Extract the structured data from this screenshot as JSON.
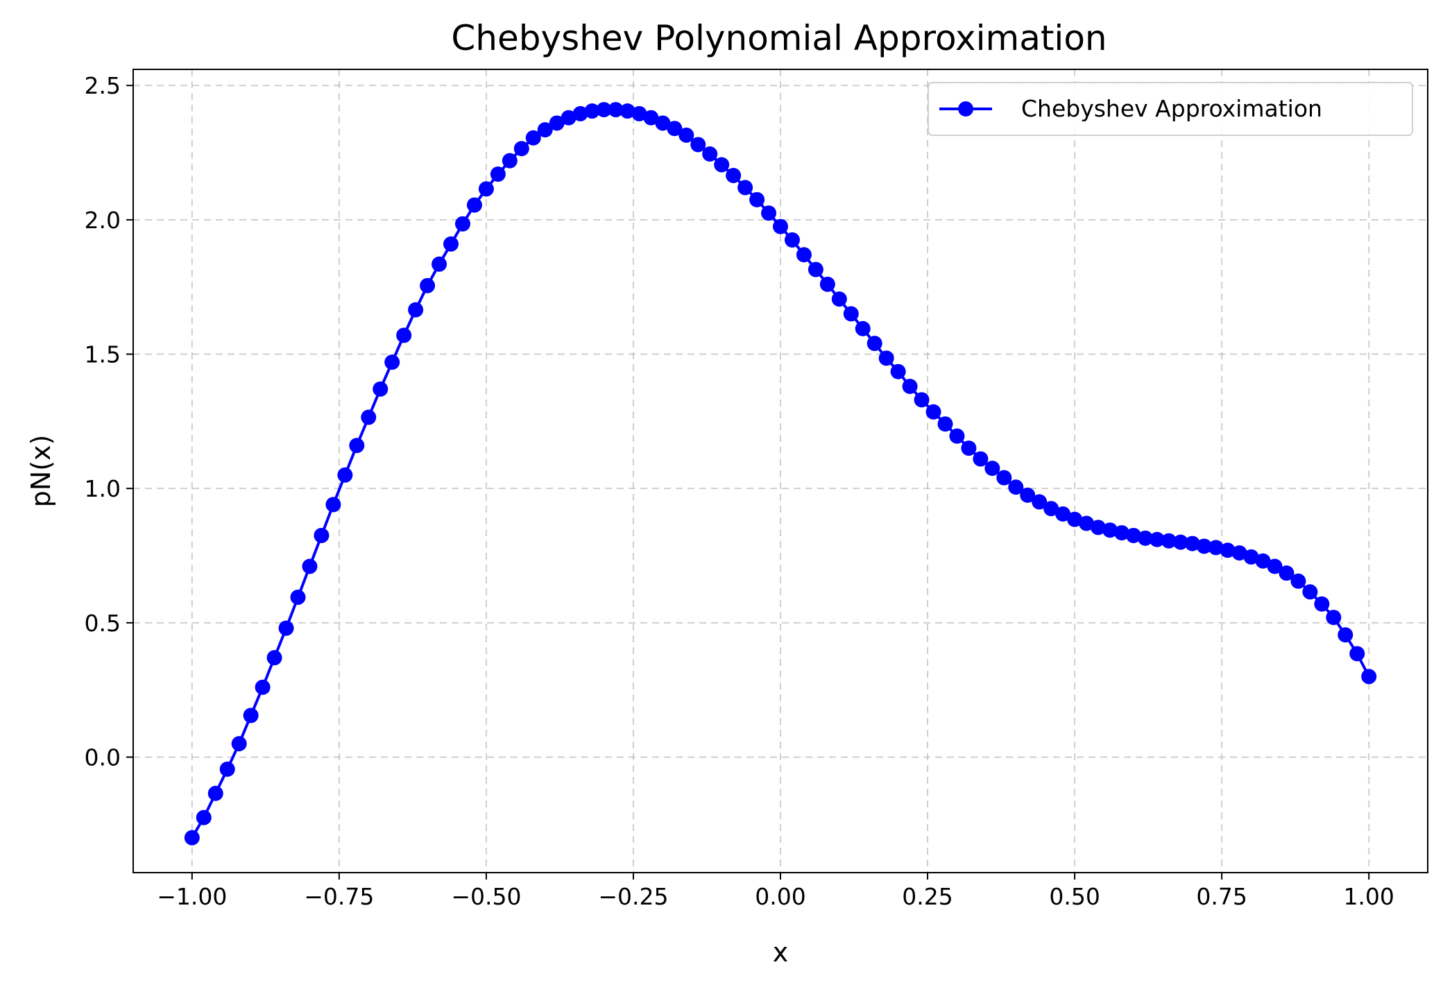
{
  "chart_data": {
    "type": "line",
    "title": "Chebyshev Polynomial Approximation",
    "xlabel": "x",
    "ylabel": "pN(x)",
    "xlim": [
      -1.1,
      1.1
    ],
    "ylim": [
      -0.43,
      2.56
    ],
    "xticks": [
      -1.0,
      -0.75,
      -0.5,
      -0.25,
      0.0,
      0.25,
      0.5,
      0.75,
      1.0
    ],
    "xtick_labels": [
      "−1.00",
      "−0.75",
      "−0.50",
      "−0.25",
      "0.00",
      "0.25",
      "0.50",
      "0.75",
      "1.00"
    ],
    "yticks": [
      0.0,
      0.5,
      1.0,
      1.5,
      2.0,
      2.5
    ],
    "ytick_labels": [
      "0.0",
      "0.5",
      "1.0",
      "1.5",
      "2.0",
      "2.5"
    ],
    "grid": true,
    "legend_position": "top-right",
    "series": [
      {
        "name": "Chebyshev Approximation",
        "color": "#0000ff",
        "marker": "circle",
        "x": [
          -1.0,
          -0.98,
          -0.96,
          -0.94,
          -0.92,
          -0.9,
          -0.88,
          -0.86,
          -0.84,
          -0.82,
          -0.8,
          -0.78,
          -0.76,
          -0.74,
          -0.72,
          -0.7,
          -0.68,
          -0.66,
          -0.64,
          -0.62,
          -0.6,
          -0.58,
          -0.56,
          -0.54,
          -0.52,
          -0.5,
          -0.48,
          -0.46,
          -0.44,
          -0.42,
          -0.4,
          -0.38,
          -0.36,
          -0.34,
          -0.32,
          -0.3,
          -0.28,
          -0.26,
          -0.24,
          -0.22,
          -0.2,
          -0.18,
          -0.16,
          -0.14,
          -0.12,
          -0.1,
          -0.08,
          -0.06,
          -0.04,
          -0.02,
          0.0,
          0.02,
          0.04,
          0.06,
          0.08,
          0.1,
          0.12,
          0.14,
          0.16,
          0.18,
          0.2,
          0.22,
          0.24,
          0.26,
          0.28,
          0.3,
          0.32,
          0.34,
          0.36,
          0.38,
          0.4,
          0.42,
          0.44,
          0.46,
          0.48,
          0.5,
          0.52,
          0.54,
          0.56,
          0.58,
          0.6,
          0.62,
          0.64,
          0.66,
          0.68,
          0.7,
          0.72,
          0.74,
          0.76,
          0.78,
          0.8,
          0.82,
          0.84,
          0.86,
          0.88,
          0.9,
          0.92,
          0.94,
          0.96,
          0.98,
          1.0
        ],
        "y": [
          -0.3,
          -0.225,
          -0.135,
          -0.045,
          0.05,
          0.155,
          0.26,
          0.37,
          0.48,
          0.595,
          0.71,
          0.825,
          0.94,
          1.05,
          1.16,
          1.265,
          1.37,
          1.47,
          1.57,
          1.665,
          1.755,
          1.835,
          1.91,
          1.985,
          2.055,
          2.115,
          2.17,
          2.22,
          2.265,
          2.305,
          2.335,
          2.36,
          2.38,
          2.395,
          2.405,
          2.41,
          2.41,
          2.405,
          2.395,
          2.38,
          2.36,
          2.34,
          2.315,
          2.28,
          2.245,
          2.205,
          2.165,
          2.12,
          2.075,
          2.025,
          1.975,
          1.925,
          1.87,
          1.815,
          1.76,
          1.705,
          1.65,
          1.595,
          1.54,
          1.485,
          1.435,
          1.38,
          1.33,
          1.285,
          1.24,
          1.195,
          1.15,
          1.11,
          1.075,
          1.04,
          1.005,
          0.975,
          0.95,
          0.925,
          0.905,
          0.885,
          0.87,
          0.855,
          0.845,
          0.835,
          0.825,
          0.815,
          0.81,
          0.805,
          0.8,
          0.795,
          0.785,
          0.78,
          0.77,
          0.76,
          0.745,
          0.73,
          0.71,
          0.685,
          0.655,
          0.615,
          0.57,
          0.52,
          0.455,
          0.385,
          0.3
        ]
      }
    ]
  }
}
